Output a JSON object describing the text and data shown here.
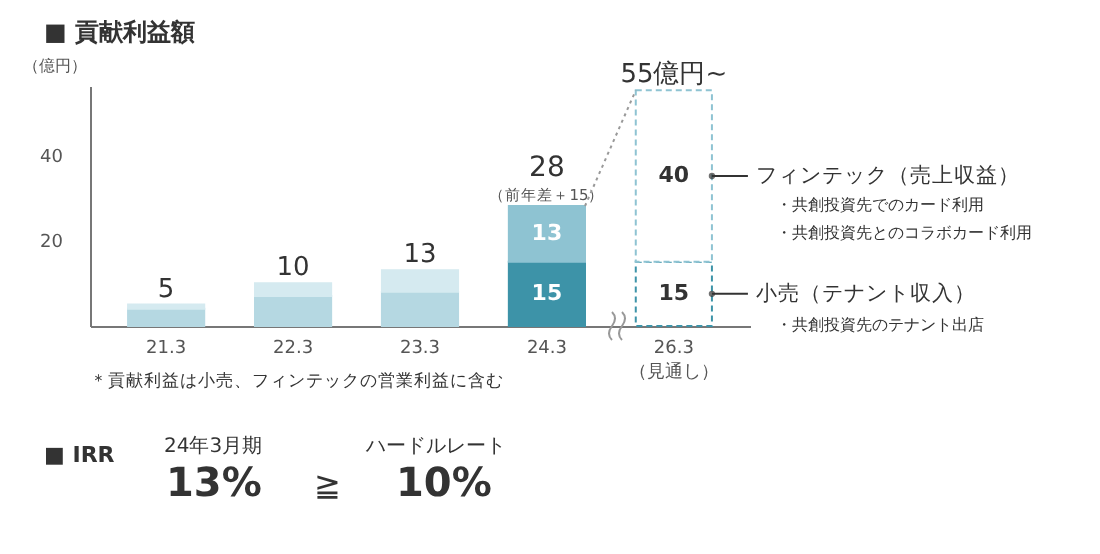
{
  "chart_data": {
    "type": "bar",
    "title": "■ 貢献利益額",
    "ylabel": "（億円）",
    "categories": [
      "21.3",
      "22.3",
      "23.3",
      "24.3",
      "26.3 （見通し）"
    ],
    "stacked": true,
    "grid": false,
    "ylim": [
      0,
      56
    ],
    "yticks": [
      20,
      40
    ],
    "series": [
      {
        "name": "小売（テナント収入）",
        "color": "#3d93a8",
        "colors": [
          "#b5d8e2",
          "#b5d8e2",
          "#b5d8e2",
          "#3d93a8",
          "#ffffff"
        ],
        "values": [
          4,
          7,
          8,
          15,
          15
        ],
        "value_labels": [
          null,
          null,
          null,
          "15",
          "15"
        ]
      },
      {
        "name": "フィンテック（売上収益）",
        "color": "#8ec3d2",
        "colors": [
          "#d5eaf0",
          "#d5eaf0",
          "#d5eaf0",
          "#8ec3d2",
          "#ffffff"
        ],
        "values": [
          1,
          3,
          5,
          13,
          40
        ],
        "value_labels": [
          null,
          null,
          null,
          "13",
          "40"
        ]
      }
    ],
    "totals": [
      "5",
      "10",
      "13",
      "28",
      "55億円~"
    ],
    "annotations": [
      {
        "text": "（前年差＋15）",
        "x": "24.3",
        "y": 28
      },
      "＊貢献利益は小売、フィンテックの営業利益に含む",
      "■ IRR",
      "24年3月期",
      "13%",
      "≧",
      "ハードルレート",
      "10%",
      "・共創投資先でのカード利用",
      "・共創投資先とのコラボカード利用",
      "・共創投資先のテナント出店"
    ]
  }
}
